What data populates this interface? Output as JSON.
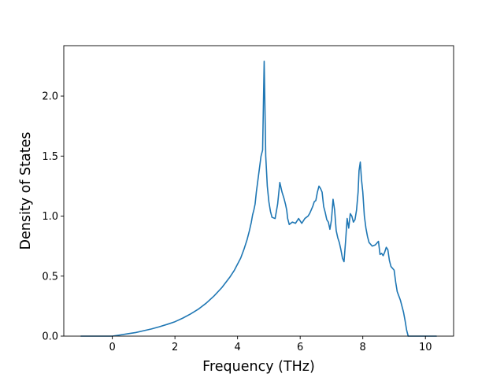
{
  "chart_data": {
    "type": "line",
    "title": "",
    "xlabel": "Frequency (THz)",
    "ylabel": "Density of States",
    "xlim": [
      -1.55,
      10.9
    ],
    "ylim": [
      0.0,
      2.42
    ],
    "xticks": [
      0,
      2,
      4,
      6,
      8,
      10
    ],
    "xtick_labels": [
      "0",
      "2",
      "4",
      "6",
      "8",
      "10"
    ],
    "yticks": [
      0.0,
      0.5,
      1.0,
      1.5,
      2.0
    ],
    "ytick_labels": [
      "0.0",
      "0.5",
      "1.0",
      "1.5",
      "2.0"
    ],
    "grid": false,
    "legend": null,
    "colors": {
      "line": "#1f77b4",
      "axes": "#000000",
      "background": "#ffffff"
    },
    "series": [
      {
        "x": [
          -1.0,
          0.0,
          0.25,
          0.5,
          0.75,
          1.0,
          1.25,
          1.5,
          1.75,
          2.0,
          2.25,
          2.5,
          2.75,
          3.0,
          3.25,
          3.5,
          3.75,
          3.9,
          4.0,
          4.1,
          4.2,
          4.3,
          4.38,
          4.44,
          4.48,
          4.52,
          4.56,
          4.6,
          4.65,
          4.7,
          4.75,
          4.8,
          4.85,
          4.9,
          4.95,
          5.0,
          5.05,
          5.1,
          5.2,
          5.28,
          5.35,
          5.42,
          5.48,
          5.53,
          5.57,
          5.6,
          5.65,
          5.75,
          5.85,
          5.95,
          6.05,
          6.15,
          6.25,
          6.3,
          6.35,
          6.4,
          6.45,
          6.5,
          6.55,
          6.6,
          6.65,
          6.7,
          6.75,
          6.8,
          6.85,
          6.9,
          6.95,
          7.0,
          7.05,
          7.1,
          7.15,
          7.2,
          7.25,
          7.3,
          7.35,
          7.4,
          7.45,
          7.5,
          7.55,
          7.6,
          7.65,
          7.7,
          7.75,
          7.8,
          7.85,
          7.88,
          7.92,
          7.96,
          8.0,
          8.05,
          8.1,
          8.15,
          8.2,
          8.3,
          8.4,
          8.5,
          8.55,
          8.6,
          8.65,
          8.7,
          8.75,
          8.8,
          8.85,
          8.9,
          9.0,
          9.05,
          9.1,
          9.2,
          9.3,
          9.35,
          9.4,
          9.45,
          10.0,
          10.35
        ],
        "y": [
          0.0,
          0.0,
          0.01,
          0.02,
          0.03,
          0.045,
          0.06,
          0.078,
          0.098,
          0.12,
          0.15,
          0.185,
          0.225,
          0.275,
          0.335,
          0.405,
          0.49,
          0.55,
          0.6,
          0.65,
          0.72,
          0.8,
          0.88,
          0.95,
          1.01,
          1.05,
          1.1,
          1.2,
          1.3,
          1.4,
          1.5,
          1.55,
          2.29,
          1.5,
          1.25,
          1.12,
          1.04,
          0.99,
          0.98,
          1.1,
          1.28,
          1.2,
          1.15,
          1.1,
          1.05,
          0.98,
          0.93,
          0.95,
          0.94,
          0.98,
          0.94,
          0.98,
          1.0,
          1.02,
          1.05,
          1.08,
          1.12,
          1.13,
          1.2,
          1.25,
          1.23,
          1.2,
          1.08,
          1.03,
          0.97,
          0.95,
          0.89,
          0.97,
          1.14,
          1.05,
          0.88,
          0.82,
          0.78,
          0.72,
          0.65,
          0.62,
          0.79,
          0.98,
          0.9,
          1.02,
          1.0,
          0.95,
          0.97,
          1.05,
          1.2,
          1.38,
          1.45,
          1.3,
          1.2,
          1.0,
          0.9,
          0.83,
          0.78,
          0.75,
          0.76,
          0.79,
          0.68,
          0.69,
          0.67,
          0.7,
          0.74,
          0.72,
          0.63,
          0.58,
          0.55,
          0.45,
          0.37,
          0.3,
          0.2,
          0.13,
          0.05,
          0.0,
          0.0,
          0.0
        ]
      }
    ]
  }
}
